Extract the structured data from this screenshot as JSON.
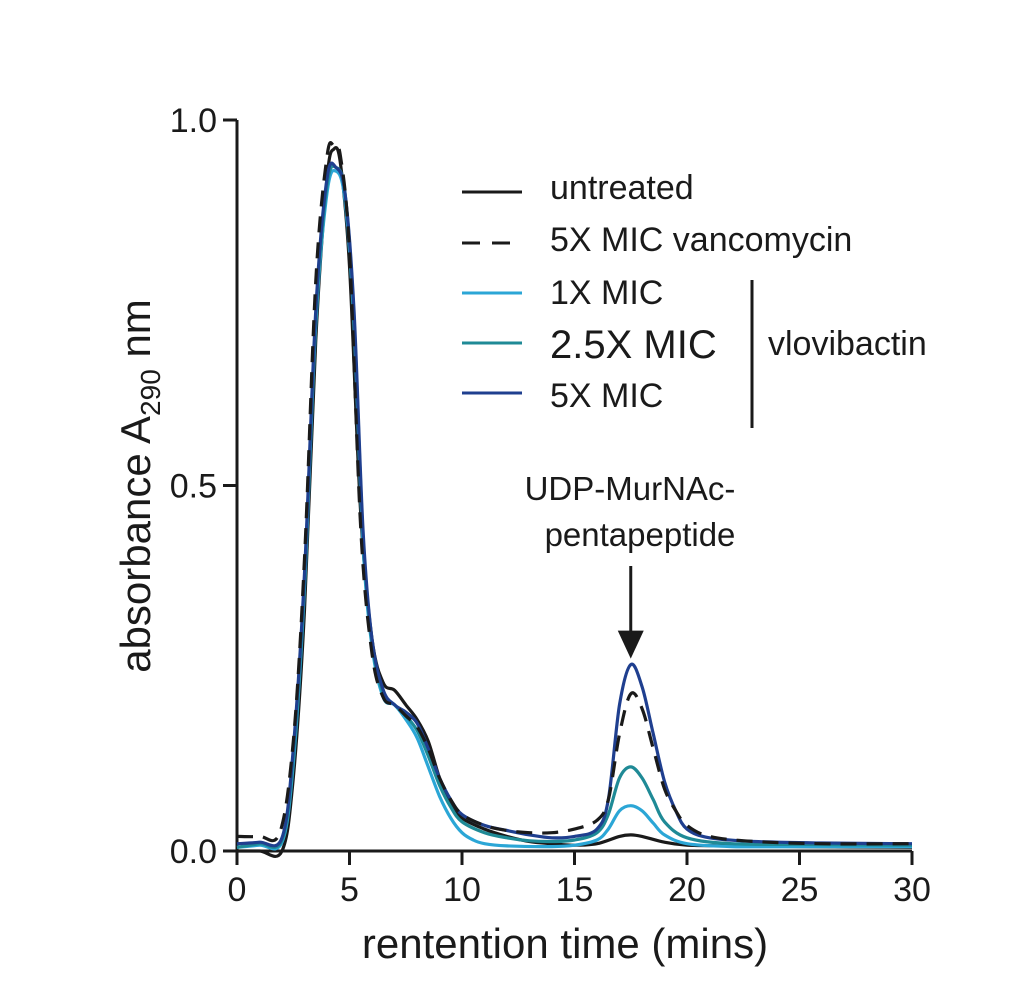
{
  "chart_data": {
    "type": "line",
    "xlabel": "rentention time (mins)",
    "ylabel_main": "absorbance A",
    "ylabel_sub": "290",
    "ylabel_unit": " nm",
    "xlim": [
      0,
      30
    ],
    "ylim": [
      0,
      1.0
    ],
    "x_ticks": [
      0,
      5,
      10,
      15,
      20,
      25,
      30
    ],
    "x_tick_labels": [
      "0",
      "5",
      "10",
      "15",
      "20",
      "25",
      "30"
    ],
    "y_ticks": [
      0,
      0.5,
      1.0
    ],
    "y_tick_labels": [
      "0.0",
      "0.5",
      "1.0"
    ],
    "grid": false,
    "legend_position": "top-right",
    "legend_group_label": "vlovibactin",
    "annotation": {
      "line1": "UDP-MurNAc-",
      "line2": "pentapeptide",
      "arrow_target": [
        17.5,
        0.255
      ]
    },
    "series": [
      {
        "name": "untreated",
        "color": "#1a1a1a",
        "dash": "solid",
        "points": [
          [
            0,
            0.0
          ],
          [
            1,
            0.0
          ],
          [
            2,
            0.0
          ],
          [
            2.5,
            0.1
          ],
          [
            3,
            0.33
          ],
          [
            3.5,
            0.7
          ],
          [
            4,
            0.92
          ],
          [
            4.3,
            0.96
          ],
          [
            4.6,
            0.94
          ],
          [
            5,
            0.8
          ],
          [
            5.5,
            0.46
          ],
          [
            6,
            0.29
          ],
          [
            6.5,
            0.23
          ],
          [
            7,
            0.22
          ],
          [
            7.5,
            0.2
          ],
          [
            8,
            0.18
          ],
          [
            8.5,
            0.15
          ],
          [
            9,
            0.1
          ],
          [
            9.5,
            0.065
          ],
          [
            10,
            0.045
          ],
          [
            11,
            0.03
          ],
          [
            12,
            0.02
          ],
          [
            13,
            0.013
          ],
          [
            14,
            0.01
          ],
          [
            15,
            0.008
          ],
          [
            16,
            0.01
          ],
          [
            17,
            0.02
          ],
          [
            17.5,
            0.022
          ],
          [
            18,
            0.02
          ],
          [
            19,
            0.012
          ],
          [
            20,
            0.008
          ],
          [
            22,
            0.007
          ],
          [
            25,
            0.006
          ],
          [
            30,
            0.005
          ]
        ]
      },
      {
        "name": "5X MIC vancomycin",
        "color": "#1a1a1a",
        "dash": "dashed",
        "points": [
          [
            0,
            0.02
          ],
          [
            1,
            0.02
          ],
          [
            1.9,
            0.025
          ],
          [
            2.5,
            0.15
          ],
          [
            3,
            0.4
          ],
          [
            3.5,
            0.78
          ],
          [
            4,
            0.95
          ],
          [
            4.3,
            0.965
          ],
          [
            4.6,
            0.95
          ],
          [
            5,
            0.82
          ],
          [
            5.5,
            0.44
          ],
          [
            6,
            0.27
          ],
          [
            6.5,
            0.21
          ],
          [
            7,
            0.2
          ],
          [
            7.5,
            0.185
          ],
          [
            8,
            0.17
          ],
          [
            8.5,
            0.14
          ],
          [
            9,
            0.1
          ],
          [
            9.5,
            0.07
          ],
          [
            10,
            0.05
          ],
          [
            11,
            0.035
          ],
          [
            12,
            0.028
          ],
          [
            13,
            0.025
          ],
          [
            14,
            0.025
          ],
          [
            15,
            0.03
          ],
          [
            16,
            0.042
          ],
          [
            16.5,
            0.07
          ],
          [
            17,
            0.16
          ],
          [
            17.5,
            0.215
          ],
          [
            18,
            0.195
          ],
          [
            18.5,
            0.14
          ],
          [
            19,
            0.085
          ],
          [
            19.5,
            0.055
          ],
          [
            20,
            0.035
          ],
          [
            21,
            0.02
          ],
          [
            23,
            0.013
          ],
          [
            26,
            0.01
          ],
          [
            30,
            0.01
          ]
        ]
      },
      {
        "name": "1X MIC",
        "color": "#2ba6d6",
        "dash": "solid",
        "points": [
          [
            0,
            0.005
          ],
          [
            1,
            0.008
          ],
          [
            2,
            0.012
          ],
          [
            2.5,
            0.12
          ],
          [
            3,
            0.36
          ],
          [
            3.5,
            0.72
          ],
          [
            4,
            0.9
          ],
          [
            4.4,
            0.93
          ],
          [
            4.8,
            0.89
          ],
          [
            5.2,
            0.72
          ],
          [
            5.6,
            0.42
          ],
          [
            6,
            0.28
          ],
          [
            6.5,
            0.21
          ],
          [
            7,
            0.2
          ],
          [
            7.5,
            0.18
          ],
          [
            8,
            0.155
          ],
          [
            8.5,
            0.115
          ],
          [
            9,
            0.075
          ],
          [
            9.5,
            0.045
          ],
          [
            10,
            0.025
          ],
          [
            10.5,
            0.015
          ],
          [
            11,
            0.01
          ],
          [
            12,
            0.007
          ],
          [
            14,
            0.006
          ],
          [
            15,
            0.008
          ],
          [
            16,
            0.015
          ],
          [
            16.5,
            0.03
          ],
          [
            17,
            0.055
          ],
          [
            17.5,
            0.062
          ],
          [
            18,
            0.055
          ],
          [
            18.5,
            0.038
          ],
          [
            19,
            0.022
          ],
          [
            20,
            0.01
          ],
          [
            22,
            0.006
          ],
          [
            25,
            0.006
          ],
          [
            30,
            0.006
          ]
        ]
      },
      {
        "name": "2.5X MIC",
        "color": "#1f8a96",
        "dash": "solid",
        "points": [
          [
            0,
            0.005
          ],
          [
            1,
            0.01
          ],
          [
            2,
            0.015
          ],
          [
            2.5,
            0.13
          ],
          [
            3,
            0.37
          ],
          [
            3.5,
            0.73
          ],
          [
            4,
            0.91
          ],
          [
            4.4,
            0.935
          ],
          [
            4.8,
            0.9
          ],
          [
            5.2,
            0.73
          ],
          [
            5.6,
            0.43
          ],
          [
            6,
            0.285
          ],
          [
            6.5,
            0.215
          ],
          [
            7,
            0.2
          ],
          [
            7.5,
            0.185
          ],
          [
            8,
            0.165
          ],
          [
            8.5,
            0.13
          ],
          [
            9,
            0.09
          ],
          [
            9.5,
            0.06
          ],
          [
            10,
            0.04
          ],
          [
            11,
            0.025
          ],
          [
            12,
            0.018
          ],
          [
            13,
            0.014
          ],
          [
            14,
            0.013
          ],
          [
            15,
            0.015
          ],
          [
            16,
            0.025
          ],
          [
            16.5,
            0.05
          ],
          [
            17,
            0.1
          ],
          [
            17.5,
            0.115
          ],
          [
            18,
            0.1
          ],
          [
            18.5,
            0.07
          ],
          [
            19,
            0.04
          ],
          [
            20,
            0.018
          ],
          [
            22,
            0.01
          ],
          [
            25,
            0.009
          ],
          [
            30,
            0.008
          ]
        ]
      },
      {
        "name": "5X MIC",
        "color": "#1f3f8f",
        "dash": "solid",
        "points": [
          [
            0,
            0.01
          ],
          [
            1,
            0.012
          ],
          [
            2,
            0.018
          ],
          [
            2.5,
            0.14
          ],
          [
            3,
            0.38
          ],
          [
            3.5,
            0.74
          ],
          [
            4,
            0.92
          ],
          [
            4.4,
            0.935
          ],
          [
            4.8,
            0.9
          ],
          [
            5.2,
            0.74
          ],
          [
            5.6,
            0.44
          ],
          [
            6,
            0.29
          ],
          [
            6.5,
            0.22
          ],
          [
            7,
            0.2
          ],
          [
            7.5,
            0.19
          ],
          [
            8,
            0.175
          ],
          [
            8.5,
            0.14
          ],
          [
            9,
            0.1
          ],
          [
            9.5,
            0.07
          ],
          [
            10,
            0.05
          ],
          [
            11,
            0.035
          ],
          [
            12,
            0.028
          ],
          [
            13,
            0.022
          ],
          [
            14,
            0.018
          ],
          [
            15,
            0.02
          ],
          [
            16,
            0.03
          ],
          [
            16.5,
            0.07
          ],
          [
            17,
            0.2
          ],
          [
            17.5,
            0.255
          ],
          [
            18,
            0.225
          ],
          [
            18.5,
            0.16
          ],
          [
            19,
            0.095
          ],
          [
            19.5,
            0.055
          ],
          [
            20,
            0.03
          ],
          [
            21,
            0.018
          ],
          [
            23,
            0.013
          ],
          [
            26,
            0.011
          ],
          [
            30,
            0.01
          ]
        ]
      }
    ]
  }
}
